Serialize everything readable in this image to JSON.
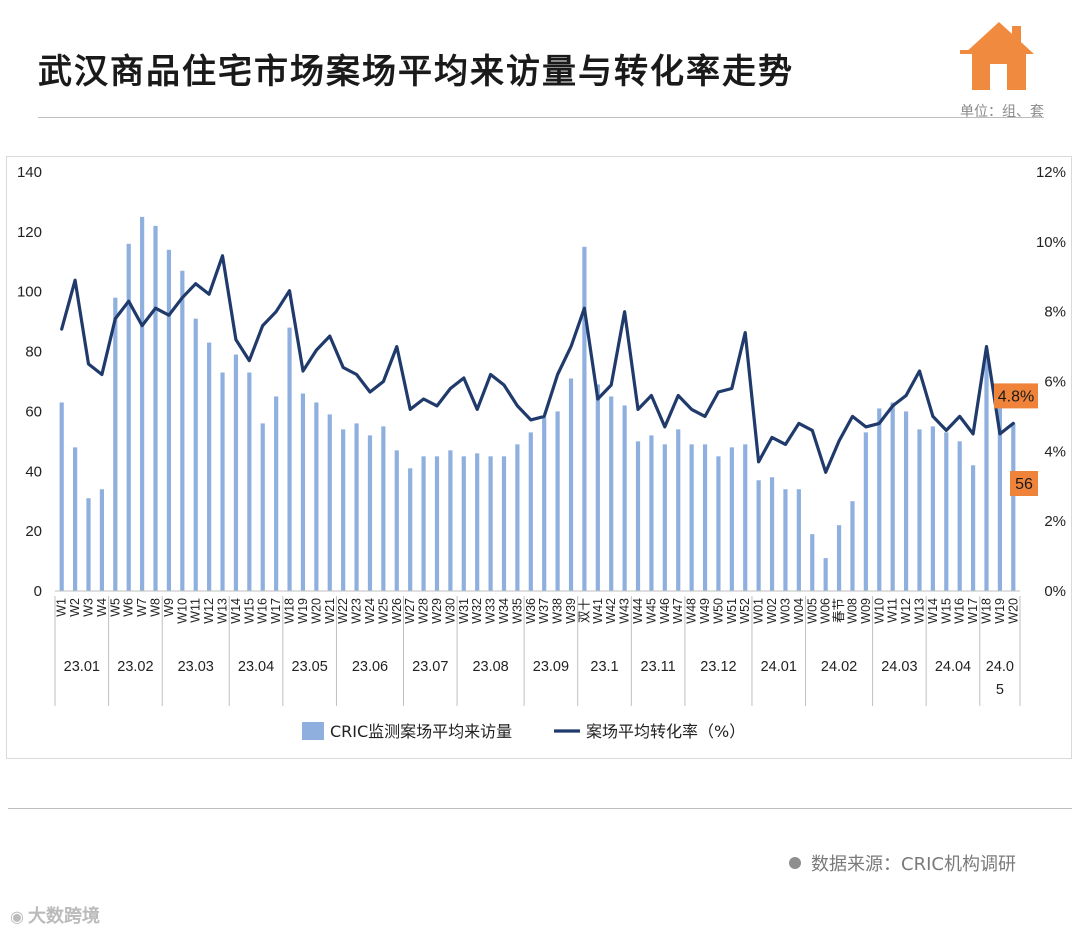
{
  "title": "武汉商品住宅市场案场平均来访量与转化率走势",
  "unit": "单位：组、套",
  "source": "数据来源：CRIC机构调研",
  "brand": "大数跨境",
  "colors": {
    "bar": "#8fb0df",
    "line": "#1f3a6b",
    "callout": "#f0833a",
    "house": "#f08a3e"
  },
  "chart_data": {
    "type": "bar+line",
    "y_left": {
      "ticks": [
        "0",
        "20",
        "40",
        "60",
        "80",
        "100",
        "120",
        "140"
      ],
      "ylim": [
        0,
        140
      ]
    },
    "y_right": {
      "ticks": [
        "0%",
        "2%",
        "4%",
        "6%",
        "8%",
        "10%",
        "12%"
      ],
      "ylim": [
        0,
        12
      ]
    },
    "categories": [
      "W1",
      "W2",
      "W3",
      "W4",
      "W5",
      "W6",
      "W7",
      "W8",
      "W9",
      "W10",
      "W11",
      "W12",
      "W13",
      "W14",
      "W15",
      "W16",
      "W17",
      "W18",
      "W19",
      "W20",
      "W21",
      "W22",
      "W23",
      "W24",
      "W25",
      "W26",
      "W27",
      "W28",
      "W29",
      "W30",
      "W31",
      "W32",
      "W33",
      "W34",
      "W35",
      "W36",
      "W37",
      "W38",
      "W39",
      "双十",
      "W41",
      "W42",
      "W43",
      "W44",
      "W45",
      "W46",
      "W47",
      "W48",
      "W49",
      "W50",
      "W51",
      "W52",
      "W01",
      "W02",
      "W03",
      "W04",
      "W05",
      "W06",
      "春节",
      "W08",
      "W09",
      "W10",
      "W11",
      "W12",
      "W13",
      "W14",
      "W15",
      "W16",
      "W17",
      "W18",
      "W19",
      "W20"
    ],
    "month_groups": [
      {
        "label": "23.01",
        "count": 4
      },
      {
        "label": "23.02",
        "count": 4
      },
      {
        "label": "23.03",
        "count": 5
      },
      {
        "label": "23.04",
        "count": 4
      },
      {
        "label": "23.05",
        "count": 4
      },
      {
        "label": "23.06",
        "count": 5
      },
      {
        "label": "23.07",
        "count": 4
      },
      {
        "label": "23.08",
        "count": 5
      },
      {
        "label": "23.09",
        "count": 4
      },
      {
        "label": "23.1",
        "count": 4
      },
      {
        "label": "23.11",
        "count": 4
      },
      {
        "label": "23.12",
        "count": 5
      },
      {
        "label": "24.01",
        "count": 4
      },
      {
        "label": "24.02",
        "count": 5
      },
      {
        "label": "24.03",
        "count": 4
      },
      {
        "label": "24.04",
        "count": 4
      },
      {
        "label": "24.0",
        "label2": "5",
        "count": 3
      }
    ],
    "series": [
      {
        "name": "CRIC监测案场平均来访量",
        "type": "bar",
        "axis": "left",
        "values": [
          63,
          48,
          31,
          34,
          98,
          116,
          125,
          122,
          114,
          107,
          91,
          83,
          73,
          79,
          73,
          56,
          65,
          88,
          66,
          63,
          59,
          54,
          56,
          52,
          55,
          47,
          41,
          45,
          45,
          47,
          45,
          46,
          45,
          45,
          49,
          53,
          58,
          60,
          71,
          115,
          69,
          65,
          62,
          50,
          52,
          49,
          54,
          49,
          49,
          45,
          48,
          49,
          37,
          38,
          34,
          34,
          19,
          11,
          22,
          30,
          53,
          61,
          63,
          60,
          54,
          55,
          53,
          50,
          42,
          79,
          63,
          56
        ]
      },
      {
        "name": "案场平均转化率（%）",
        "type": "line",
        "axis": "right",
        "values": [
          7.5,
          8.9,
          6.5,
          6.2,
          7.8,
          8.3,
          7.6,
          8.1,
          7.9,
          8.4,
          8.8,
          8.5,
          9.6,
          7.2,
          6.6,
          7.6,
          8.0,
          8.6,
          6.3,
          6.9,
          7.3,
          6.4,
          6.2,
          5.7,
          6.0,
          7.0,
          5.2,
          5.5,
          5.3,
          5.8,
          6.1,
          5.2,
          6.2,
          5.9,
          5.3,
          4.9,
          5.0,
          6.2,
          7.0,
          8.1,
          5.5,
          5.9,
          8.0,
          5.2,
          5.6,
          4.7,
          5.6,
          5.2,
          5.0,
          5.7,
          5.8,
          7.4,
          3.7,
          4.4,
          4.2,
          4.8,
          4.6,
          3.4,
          4.3,
          5.0,
          4.7,
          4.8,
          5.3,
          5.6,
          6.3,
          5.0,
          4.6,
          5.0,
          4.5,
          7.0,
          4.5,
          4.8
        ]
      }
    ],
    "annotations": [
      {
        "text": "4.8%",
        "series": 1,
        "index": 71
      },
      {
        "text": "56",
        "series": 0,
        "index": 71
      }
    ],
    "legend": {
      "position": "bottom"
    }
  }
}
